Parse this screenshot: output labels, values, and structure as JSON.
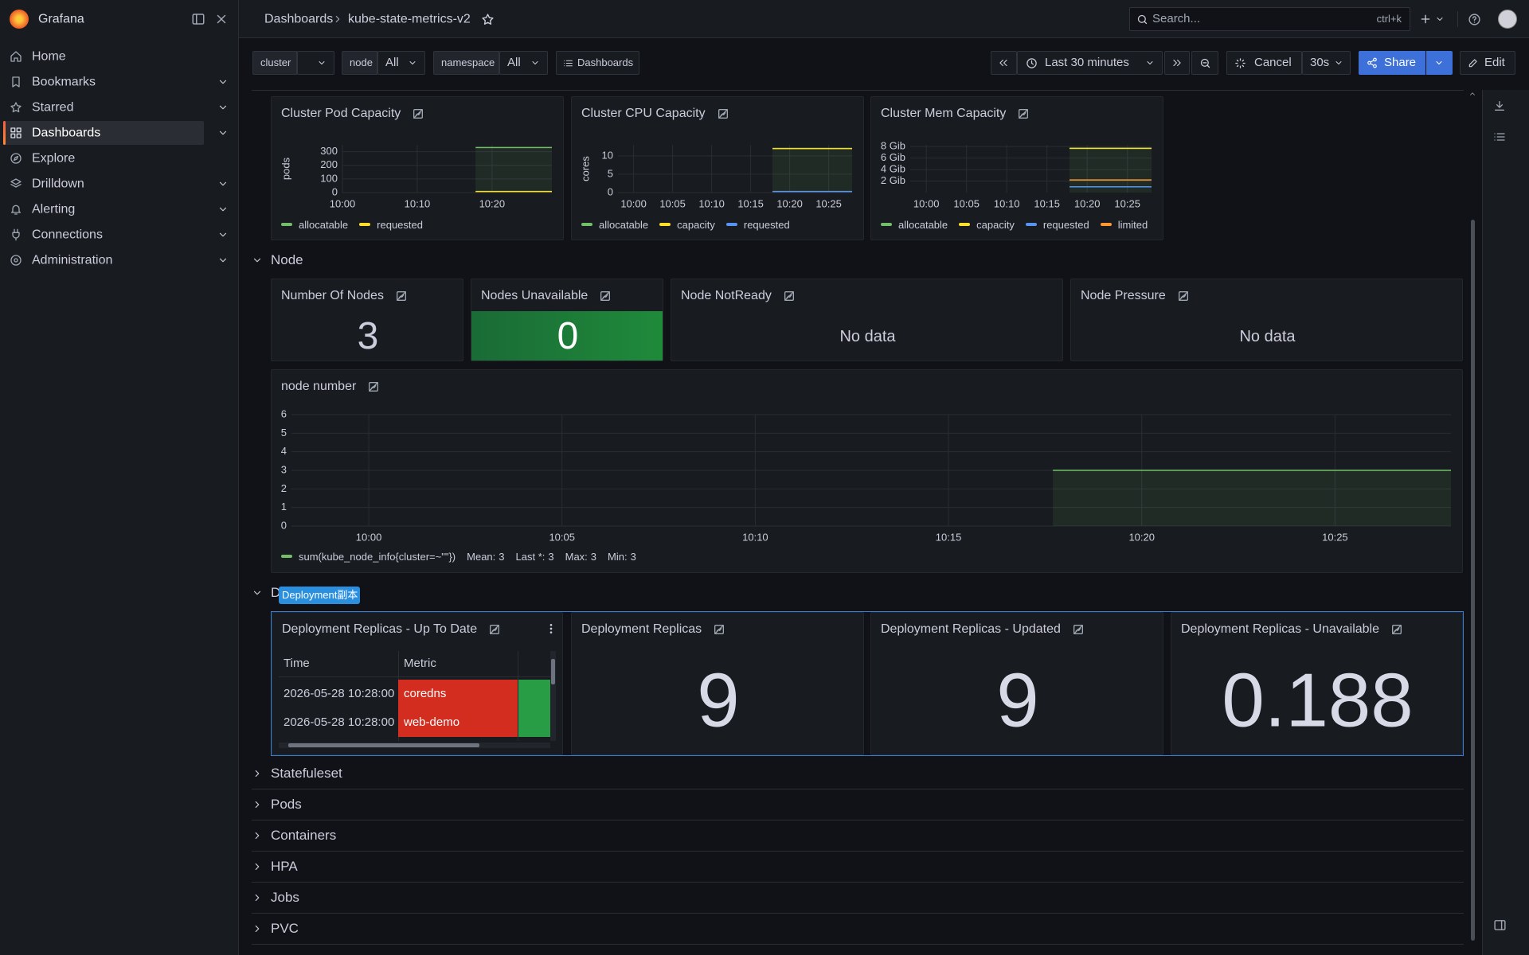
{
  "app": {
    "name": "Grafana"
  },
  "nav": [
    {
      "label": "Home"
    },
    {
      "label": "Bookmarks",
      "expandable": true
    },
    {
      "label": "Starred",
      "expandable": true
    },
    {
      "label": "Dashboards",
      "expandable": true,
      "active": true
    },
    {
      "label": "Explore"
    },
    {
      "label": "Drilldown",
      "expandable": true
    },
    {
      "label": "Alerting",
      "expandable": true
    },
    {
      "label": "Connections",
      "expandable": true
    },
    {
      "label": "Administration",
      "expandable": true
    }
  ],
  "breadcrumb": [
    "Dashboards",
    "kube-state-metrics-v2"
  ],
  "search": {
    "placeholder": "Search...",
    "shortcut": "ctrl+k"
  },
  "variables": [
    {
      "name": "cluster"
    },
    {
      "name": "node",
      "value": "All"
    },
    {
      "name": "namespace",
      "value": "All"
    }
  ],
  "toolbar": {
    "dashboards": "Dashboards",
    "time_range": "Last 30 minutes",
    "cancel": "Cancel",
    "refresh": "30s",
    "share": "Share",
    "edit": "Edit"
  },
  "capacity_panels": [
    {
      "title": "Cluster Pod Capacity",
      "chart": {
        "type": "line",
        "y_label": "pods",
        "grid": true,
        "xlim": [
          600,
          628
        ],
        "xticks": [
          {
            "value": 600,
            "label": "10:00"
          },
          {
            "value": 610,
            "label": "10:10"
          },
          {
            "value": 620,
            "label": "10:20"
          }
        ],
        "ylim": [
          0,
          350
        ],
        "yticks": [
          0,
          100,
          200,
          300
        ],
        "x": [
          617.8,
          628
        ],
        "series": [
          {
            "name": "allocatable",
            "color": "#73bf69",
            "values": [
              330,
              330
            ]
          },
          {
            "name": "requested",
            "color": "#fade2a",
            "values": [
              8,
              8
            ]
          }
        ]
      }
    },
    {
      "title": "Cluster CPU Capacity",
      "chart": {
        "type": "line",
        "y_label": "cores",
        "grid": true,
        "xlim": [
          598,
          628
        ],
        "xticks": [
          {
            "value": 600,
            "label": "10:00"
          },
          {
            "value": 605,
            "label": "10:05"
          },
          {
            "value": 610,
            "label": "10:10"
          },
          {
            "value": 615,
            "label": "10:15"
          },
          {
            "value": 620,
            "label": "10:20"
          },
          {
            "value": 625,
            "label": "10:25"
          }
        ],
        "ylim": [
          0,
          13
        ],
        "yticks": [
          0,
          5,
          10
        ],
        "x": [
          617.8,
          628
        ],
        "series": [
          {
            "name": "allocatable",
            "color": "#73bf69",
            "values": [
              12,
              12
            ]
          },
          {
            "name": "capacity",
            "color": "#fade2a",
            "values": [
              12,
              12
            ]
          },
          {
            "name": "requested",
            "color": "#5794f2",
            "values": [
              0.3,
              0.3
            ]
          }
        ]
      }
    },
    {
      "title": "Cluster Mem Capacity",
      "chart": {
        "type": "line",
        "grid": true,
        "xlim": [
          598,
          628
        ],
        "xticks": [
          {
            "value": 600,
            "label": "10:00"
          },
          {
            "value": 605,
            "label": "10:05"
          },
          {
            "value": 610,
            "label": "10:10"
          },
          {
            "value": 615,
            "label": "10:15"
          },
          {
            "value": 620,
            "label": "10:20"
          },
          {
            "value": 625,
            "label": "10:25"
          }
        ],
        "ylim": [
          0,
          8.3
        ],
        "yticks": [
          {
            "value": 2,
            "label": "2 Gib"
          },
          {
            "value": 4,
            "label": "4 Gib"
          },
          {
            "value": 6,
            "label": "6 Gib"
          },
          {
            "value": 8,
            "label": "8 Gib"
          }
        ],
        "x": [
          617.8,
          628
        ],
        "series": [
          {
            "name": "allocatable",
            "color": "#73bf69",
            "values": [
              7.7,
              7.7
            ]
          },
          {
            "name": "capacity",
            "color": "#fade2a",
            "values": [
              7.7,
              7.7
            ]
          },
          {
            "name": "requested",
            "color": "#5794f2",
            "values": [
              1.0,
              1.0
            ]
          },
          {
            "name": "limited",
            "color": "#ff9830",
            "values": [
              2.2,
              2.2
            ]
          }
        ]
      }
    }
  ],
  "rows": {
    "node": {
      "title": "Node",
      "stats": [
        {
          "title": "Number Of Nodes",
          "value": 3
        },
        {
          "title": "Nodes Unavailable",
          "value": 0,
          "color": "#1f8a3a"
        },
        {
          "title": "Node NotReady",
          "text": "No data"
        },
        {
          "title": "Node Pressure",
          "text": "No data"
        }
      ],
      "timeseries": {
        "title": "node number",
        "chart": {
          "type": "line",
          "grid": true,
          "xlim": [
            598,
            628
          ],
          "xticks": [
            {
              "value": 600,
              "label": "10:00"
            },
            {
              "value": 605,
              "label": "10:05"
            },
            {
              "value": 610,
              "label": "10:10"
            },
            {
              "value": 615,
              "label": "10:15"
            },
            {
              "value": 620,
              "label": "10:20"
            },
            {
              "value": 625,
              "label": "10:25"
            }
          ],
          "ylim": [
            0,
            6
          ],
          "yticks": [
            0,
            1,
            2,
            3,
            4,
            5,
            6
          ],
          "x": [
            617.7,
            628
          ],
          "series": [
            {
              "name": "sum(kube_node_info{cluster=~\"\"})",
              "color": "#73bf69",
              "values": [
                3,
                3
              ]
            }
          ],
          "legend_stats": [
            {
              "label": "Mean:",
              "value": 3
            },
            {
              "label": "Last *:",
              "value": 3
            },
            {
              "label": "Max:",
              "value": 3
            },
            {
              "label": "Min:",
              "value": 3
            }
          ]
        }
      }
    },
    "deployment": {
      "title": "Deployment",
      "tooltip": "Deployment副本",
      "table": {
        "title": "Deployment Replicas - Up To Date",
        "columns": [
          "Time",
          "Metric"
        ],
        "rows": [
          [
            "2026-05-28 10:28:00",
            "coredns"
          ],
          [
            "2026-05-28 10:28:00",
            "web-demo"
          ]
        ]
      },
      "stats": [
        {
          "title": "Deployment Replicas",
          "value": 9
        },
        {
          "title": "Deployment Replicas - Updated",
          "value": 9
        },
        {
          "title": "Deployment Replicas - Unavailable",
          "value": 0.188
        }
      ]
    },
    "collapsed": [
      "Statefuleset",
      "Pods",
      "Containers",
      "HPA",
      "Jobs",
      "PVC"
    ]
  }
}
